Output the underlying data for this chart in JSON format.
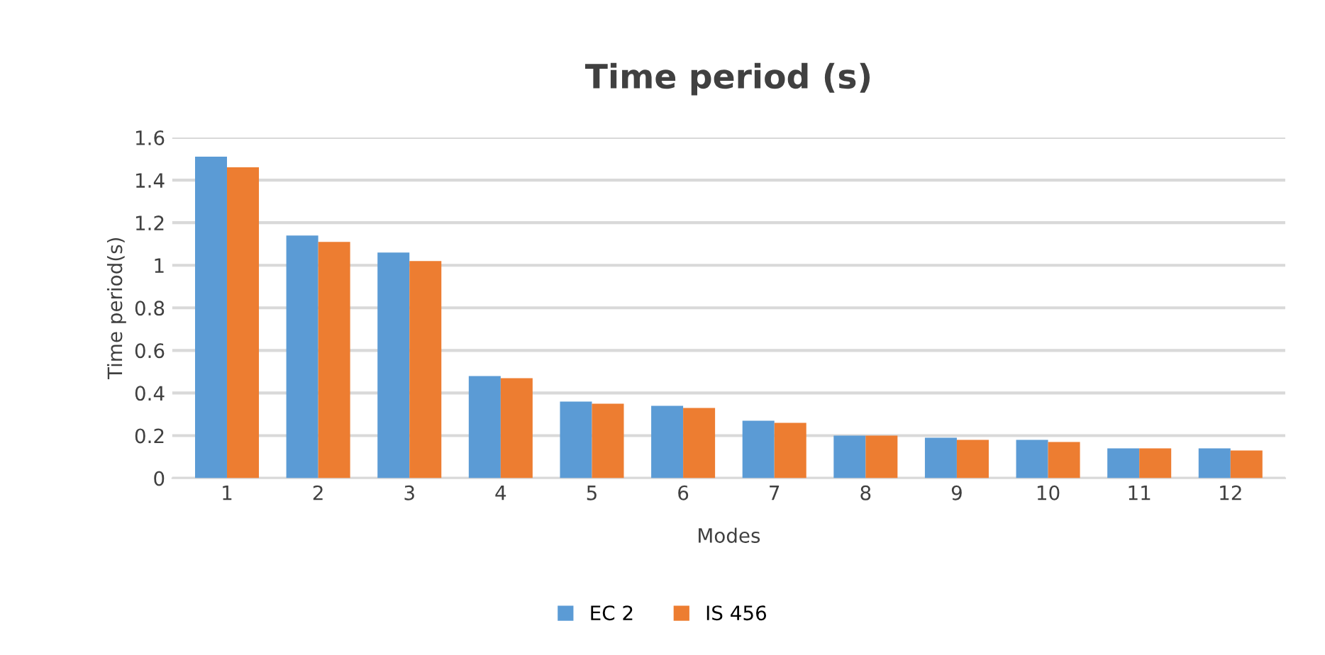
{
  "chart_data": {
    "type": "bar",
    "title": "Time period (s)",
    "xlabel": "Modes",
    "ylabel": "Time period(s)",
    "categories": [
      "1",
      "2",
      "3",
      "4",
      "5",
      "6",
      "7",
      "8",
      "9",
      "10",
      "11",
      "12"
    ],
    "series": [
      {
        "name": "EC 2",
        "color": "#5b9bd5",
        "values": [
          1.51,
          1.14,
          1.06,
          0.48,
          0.36,
          0.34,
          0.27,
          0.2,
          0.19,
          0.18,
          0.14,
          0.14
        ]
      },
      {
        "name": "IS 456",
        "color": "#ed7d31",
        "values": [
          1.46,
          1.11,
          1.02,
          0.47,
          0.35,
          0.33,
          0.26,
          0.2,
          0.18,
          0.17,
          0.14,
          0.13
        ]
      }
    ],
    "ylim": [
      0,
      1.6
    ],
    "yticks": [
      0,
      0.2,
      0.4,
      0.6,
      0.8,
      1,
      1.2,
      1.4,
      1.6
    ],
    "grid": "y",
    "legend": "bottom"
  }
}
